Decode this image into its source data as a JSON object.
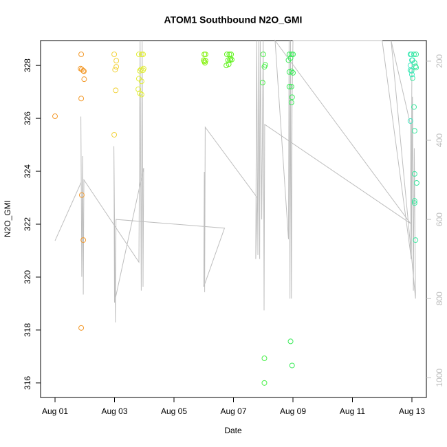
{
  "chart_data": {
    "type": "scatter",
    "title": "ATOM1 Southbound N2O_GMI",
    "xlabel": "Date",
    "ylabel": "N2O_GMI",
    "xlim": [
      -0.486,
      12.486
    ],
    "ylim": [
      315.45,
      328.94
    ],
    "y2lim": [
      1050,
      148
    ],
    "xticks": [
      {
        "value": 0,
        "label": "Aug 01"
      },
      {
        "value": 2,
        "label": "Aug 03"
      },
      {
        "value": 4,
        "label": "Aug 05"
      },
      {
        "value": 6,
        "label": "Aug 07"
      },
      {
        "value": 8,
        "label": "Aug 09"
      },
      {
        "value": 10,
        "label": "Aug 11"
      },
      {
        "value": 12,
        "label": "Aug 13"
      }
    ],
    "yticks": [
      316,
      318,
      320,
      322,
      324,
      326,
      328
    ],
    "y2ticks": [
      200,
      400,
      600,
      800,
      1000
    ],
    "series": [
      {
        "type": "line",
        "axis": "y2",
        "color": "#bebebe",
        "x": [
          0,
          0.88,
          0.87,
          0.9,
          0.93,
          0.95,
          0.97,
          2.82,
          2.86,
          2.9,
          2.93,
          2.96,
          2.98,
          2.0,
          1.98,
          2.03,
          2.05,
          5.7,
          5.0,
          5.02,
          5.03,
          5.05,
          6.8,
          6.75,
          6.78,
          6.82,
          6.85,
          6.88,
          6.9,
          6.95,
          7.0,
          7.02,
          7.03,
          7.05,
          11.95,
          7.4,
          7.85,
          7.87,
          7.9,
          7.92,
          7.95,
          7.97,
          8.0,
          11.0,
          11.98,
          12.02,
          12.05,
          12.08,
          12.12,
          11.3,
          11.95,
          11.97,
          12.0
        ],
        "values": [
          654,
          506,
          340,
          745,
          440,
          790,
          500,
          708,
          148,
          780,
          148,
          770,
          470,
          810,
          415,
          860,
          600,
          622,
          770,
          480,
          784,
          367,
          545,
          700,
          148,
          690,
          148,
          700,
          148,
          600,
          148,
          590,
          830,
          360,
          610,
          148,
          650,
          148,
          800,
          148,
          800,
          320,
          148,
          148,
          700,
          290,
          780,
          420,
          800,
          148,
          360,
          700,
          200
        ]
      },
      {
        "type": "scatter",
        "color": "#f39a2c",
        "x": [
          0,
          0.88,
          0.86,
          0.9,
          0.95,
          0.97,
          0.98,
          0.88,
          0.9,
          0.95,
          0.88
        ],
        "values": [
          326.08,
          328.42,
          327.88,
          327.85,
          327.8,
          327.78,
          327.48,
          326.75,
          323.1,
          321.4,
          318.08
        ]
      },
      {
        "type": "scatter",
        "color": "#f2d23a",
        "x": [
          1.99,
          2.06,
          2.06,
          2.02,
          2.04,
          1.99
        ],
        "values": [
          328.42,
          328.18,
          327.95,
          327.84,
          327.06,
          325.38
        ]
      },
      {
        "type": "scatter",
        "color": "#e2ee3a",
        "x": [
          2.82,
          2.91,
          2.96,
          2.89,
          2.96,
          2.85,
          2.98,
          2.82,
          2.91,
          2.8,
          2.85,
          2.91
        ],
        "values": [
          328.42,
          328.42,
          328.42,
          327.85,
          327.82,
          327.8,
          327.88,
          327.5,
          327.4,
          327.1,
          326.95,
          326.9
        ]
      },
      {
        "type": "scatter",
        "color": "#86f20f",
        "x": [
          5.02,
          5.06,
          5.0,
          5.02,
          5.06,
          5.04
        ],
        "values": [
          328.42,
          328.42,
          328.2,
          328.15,
          328.18,
          328.1
        ]
      },
      {
        "type": "scatter",
        "color": "#5ef21a",
        "x": [
          5.78,
          5.86,
          5.92,
          5.82,
          5.88,
          5.94,
          5.76,
          5.84,
          5.9
        ],
        "values": [
          328.42,
          328.42,
          328.42,
          328.2,
          328.2,
          328.22,
          328.0,
          328.05,
          328.25
        ]
      },
      {
        "type": "scatter",
        "color": "#48f048",
        "x": [
          7.0,
          7.07,
          7.04,
          6.98,
          7.04,
          7.04
        ],
        "values": [
          328.42,
          328.02,
          327.95,
          327.35,
          316.93,
          316.0
        ]
      },
      {
        "type": "scatter",
        "color": "#3ceb5a",
        "x": [
          7.88,
          7.95,
          8.0,
          7.85,
          7.92,
          7.88,
          7.95,
          8.0,
          7.88,
          7.95,
          7.95,
          7.97,
          7.92,
          7.97
        ],
        "values": [
          328.42,
          328.42,
          328.42,
          328.2,
          328.28,
          327.75,
          327.78,
          327.72,
          327.2,
          327.2,
          326.6,
          326.8,
          317.57,
          316.66
        ]
      },
      {
        "type": "scatter",
        "color": "#3ce8a0",
        "x": [
          11.98,
          12.07,
          12.14,
          12.02,
          12.09,
          11.99,
          12.12,
          12.14,
          12.02,
          12.07,
          12.09,
          12.09,
          12.16,
          12.09,
          12.09,
          12.12
        ],
        "values": [
          328.42,
          328.42,
          328.42,
          328.2,
          328.1,
          327.8,
          327.97,
          327.92,
          327.52,
          326.43,
          325.53,
          323.9,
          323.56,
          322.88,
          322.8,
          321.4
        ]
      },
      {
        "type": "scatter",
        "color": "#3ce8c0",
        "x": [
          11.95,
          12.0,
          11.95,
          11.95,
          12.0,
          11.95
        ],
        "values": [
          328.42,
          328.2,
          328.0,
          327.82,
          327.66,
          325.9
        ]
      }
    ]
  }
}
